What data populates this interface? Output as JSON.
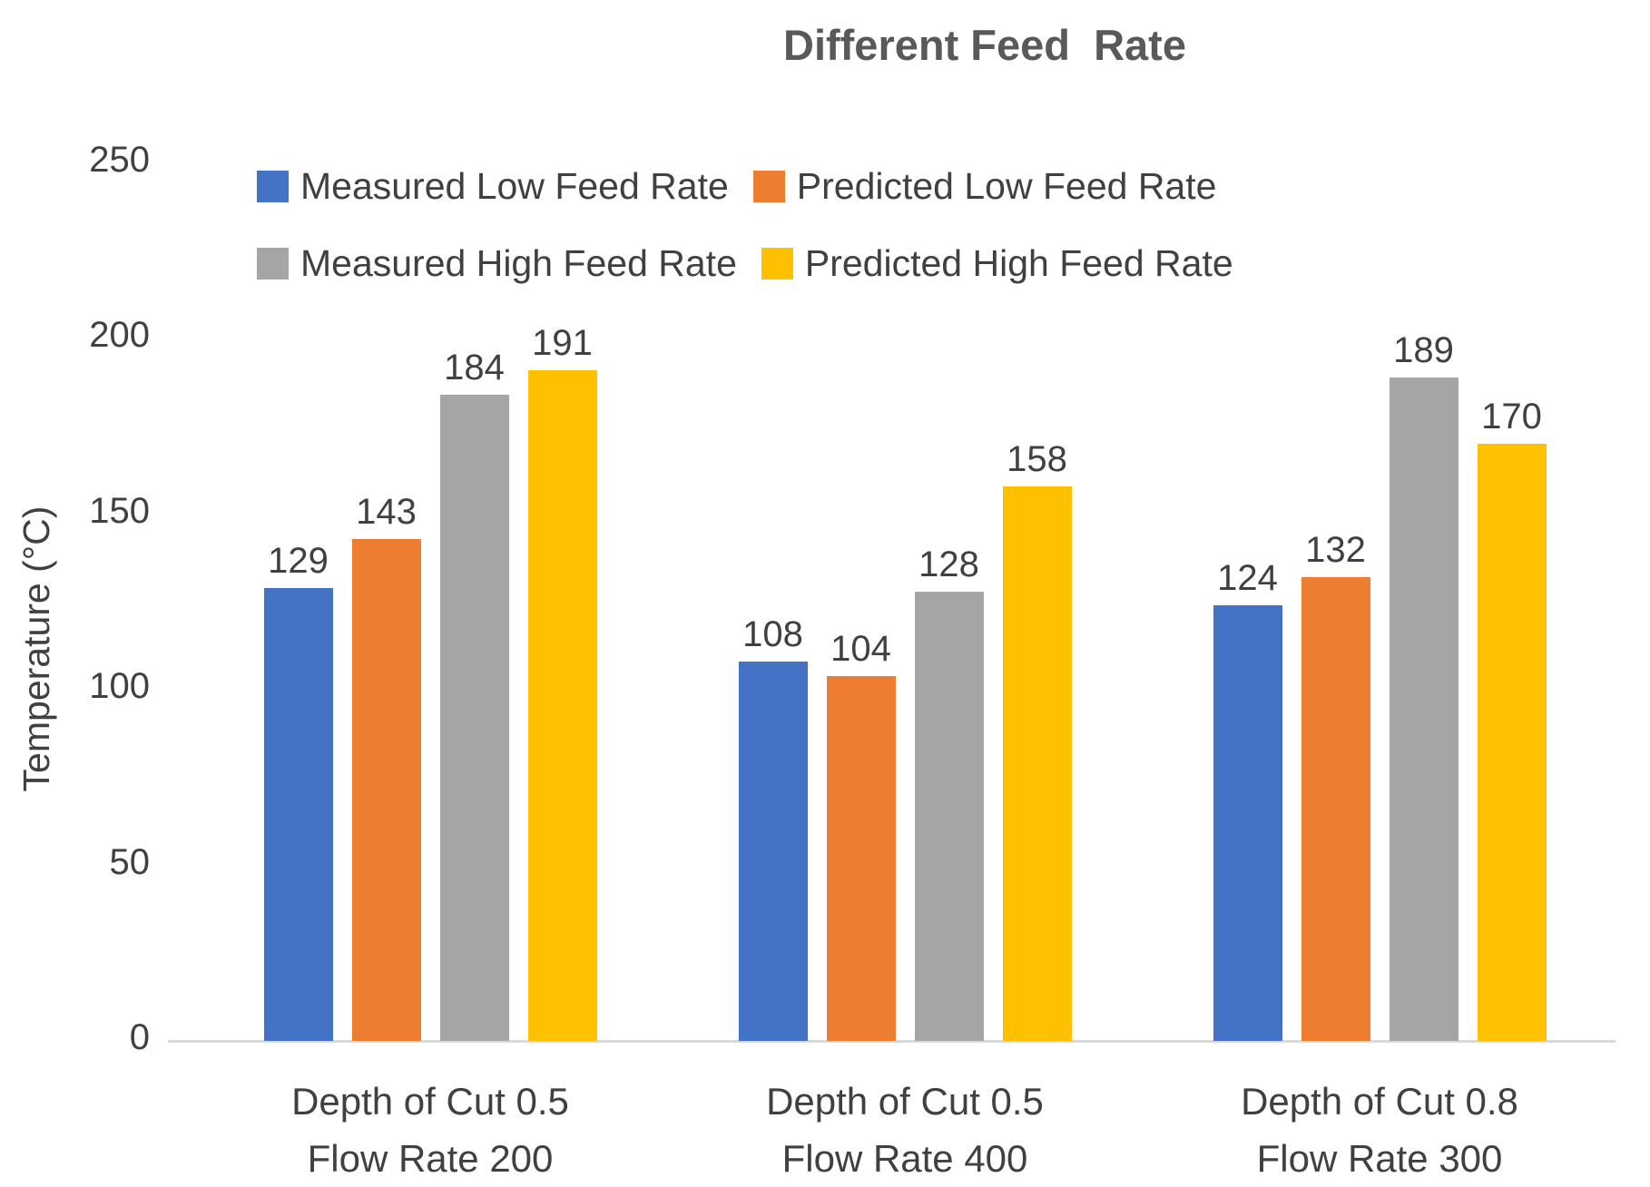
{
  "chart_data": {
    "type": "bar",
    "title": "Different Feed  Rate",
    "xlabel": "",
    "ylabel": "Temperature (°C)",
    "ylim": [
      0,
      250
    ],
    "yticks": [
      250,
      200,
      150,
      100,
      50,
      0
    ],
    "grid": false,
    "data_labels": true,
    "legend_position": "inside-top-left, two rows",
    "categories": [
      {
        "line1": "Depth of Cut 0.5",
        "line2": "Flow Rate 200"
      },
      {
        "line1": "Depth of Cut 0.5",
        "line2": "Flow Rate 400"
      },
      {
        "line1": "Depth of Cut 0.8",
        "line2": "Flow Rate 300"
      }
    ],
    "series": [
      {
        "name": "Measured Low Feed Rate",
        "color": "#4472C4",
        "values": [
          129,
          108,
          124
        ]
      },
      {
        "name": "Predicted Low Feed Rate",
        "color": "#ED7D31",
        "values": [
          143,
          104,
          132
        ]
      },
      {
        "name": "Measured High Feed Rate",
        "color": "#A5A5A5",
        "values": [
          184,
          128,
          189
        ]
      },
      {
        "name": "Predicted High Feed Rate",
        "color": "#FFC000",
        "values": [
          191,
          158,
          170
        ]
      }
    ],
    "colors": {
      "text": "#404040",
      "title_text": "#595959",
      "axis_line": "#D9D9D9"
    }
  }
}
